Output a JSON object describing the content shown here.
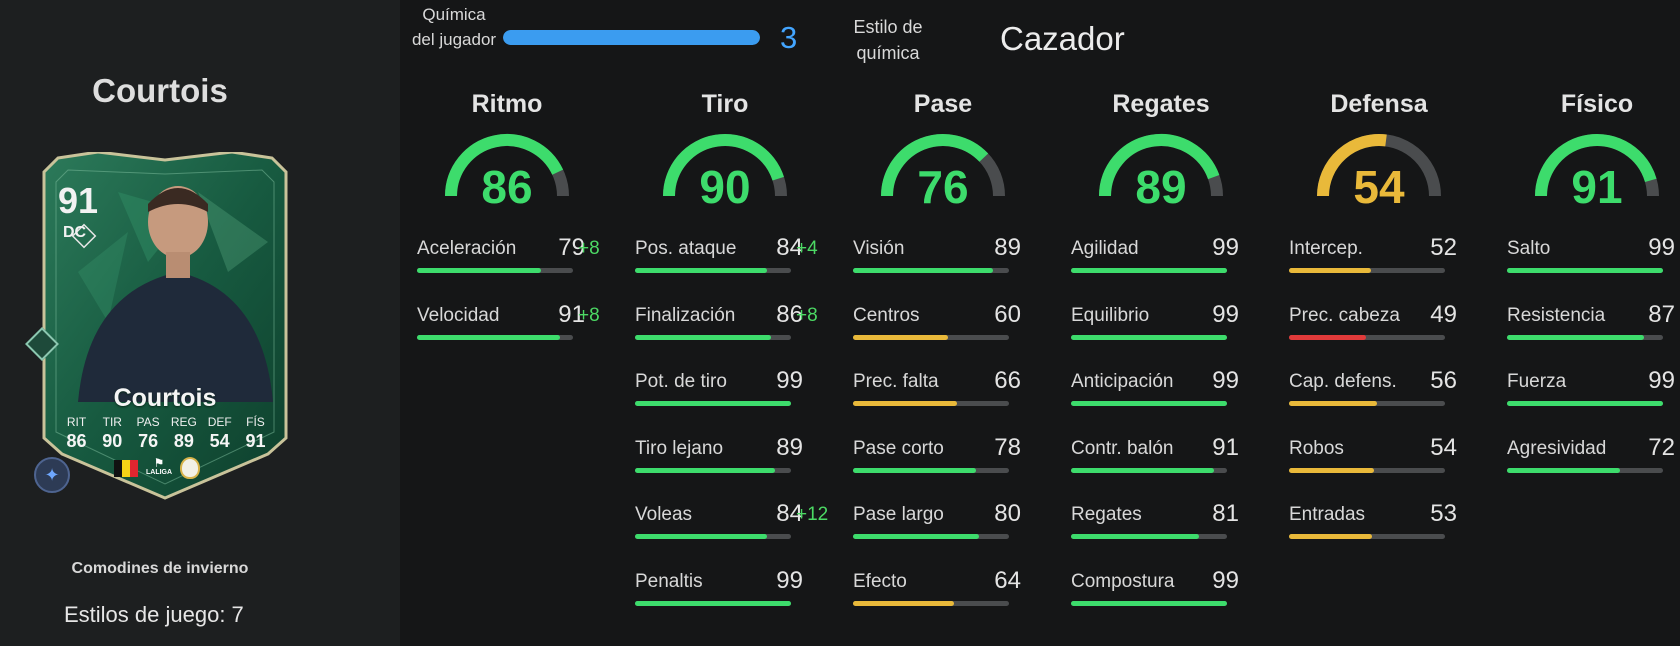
{
  "player": {
    "name": "Courtois",
    "card_rating": "91",
    "card_position": "DC",
    "card_name": "Courtois",
    "promo": "Comodines de invierno",
    "playstyles": "Estilos de juego: 7",
    "card_stats": [
      {
        "label": "RIT",
        "value": "86"
      },
      {
        "label": "TIR",
        "value": "90"
      },
      {
        "label": "PAS",
        "value": "76"
      },
      {
        "label": "REG",
        "value": "89"
      },
      {
        "label": "DEF",
        "value": "54"
      },
      {
        "label": "FÍS",
        "value": "91"
      }
    ],
    "league_logo_text": "LALIGA"
  },
  "chemistry": {
    "label": "Química del jugador",
    "value": "3",
    "fill_fraction": 1.0,
    "style_label": "Estilo de química",
    "style_value": "Cazador"
  },
  "colors": {
    "high": "#3ddc6c",
    "mid": "#e9b93a",
    "low": "#e03a3a",
    "chem": "#3b9cf0"
  },
  "categories": [
    {
      "title": "Ritmo",
      "value": "86",
      "attributes": [
        {
          "name": "Aceleración",
          "value": "79",
          "boost": "+8"
        },
        {
          "name": "Velocidad",
          "value": "91",
          "boost": "+8"
        }
      ]
    },
    {
      "title": "Tiro",
      "value": "90",
      "attributes": [
        {
          "name": "Pos. ataque",
          "value": "84",
          "boost": "+4"
        },
        {
          "name": "Finalización",
          "value": "86",
          "boost": "+8"
        },
        {
          "name": "Pot. de tiro",
          "value": "99",
          "boost": ""
        },
        {
          "name": "Tiro lejano",
          "value": "89",
          "boost": ""
        },
        {
          "name": "Voleas",
          "value": "84",
          "boost": "+12"
        },
        {
          "name": "Penaltis",
          "value": "99",
          "boost": ""
        }
      ]
    },
    {
      "title": "Pase",
      "value": "76",
      "attributes": [
        {
          "name": "Visión",
          "value": "89",
          "boost": ""
        },
        {
          "name": "Centros",
          "value": "60",
          "boost": ""
        },
        {
          "name": "Prec. falta",
          "value": "66",
          "boost": ""
        },
        {
          "name": "Pase corto",
          "value": "78",
          "boost": ""
        },
        {
          "name": "Pase largo",
          "value": "80",
          "boost": ""
        },
        {
          "name": "Efecto",
          "value": "64",
          "boost": ""
        }
      ]
    },
    {
      "title": "Regates",
      "value": "89",
      "attributes": [
        {
          "name": "Agilidad",
          "value": "99",
          "boost": ""
        },
        {
          "name": "Equilibrio",
          "value": "99",
          "boost": ""
        },
        {
          "name": "Anticipación",
          "value": "99",
          "boost": ""
        },
        {
          "name": "Contr. balón",
          "value": "91",
          "boost": ""
        },
        {
          "name": "Regates",
          "value": "81",
          "boost": ""
        },
        {
          "name": "Compostura",
          "value": "99",
          "boost": ""
        }
      ]
    },
    {
      "title": "Defensa",
      "value": "54",
      "attributes": [
        {
          "name": "Intercep.",
          "value": "52",
          "boost": ""
        },
        {
          "name": "Prec. cabeza",
          "value": "49",
          "boost": ""
        },
        {
          "name": "Cap. defens.",
          "value": "56",
          "boost": ""
        },
        {
          "name": "Robos",
          "value": "54",
          "boost": ""
        },
        {
          "name": "Entradas",
          "value": "53",
          "boost": ""
        }
      ]
    },
    {
      "title": "Físico",
      "value": "91",
      "attributes": [
        {
          "name": "Salto",
          "value": "99",
          "boost": ""
        },
        {
          "name": "Resistencia",
          "value": "87",
          "boost": ""
        },
        {
          "name": "Fuerza",
          "value": "99",
          "boost": ""
        },
        {
          "name": "Agresividad",
          "value": "72",
          "boost": ""
        }
      ]
    }
  ]
}
